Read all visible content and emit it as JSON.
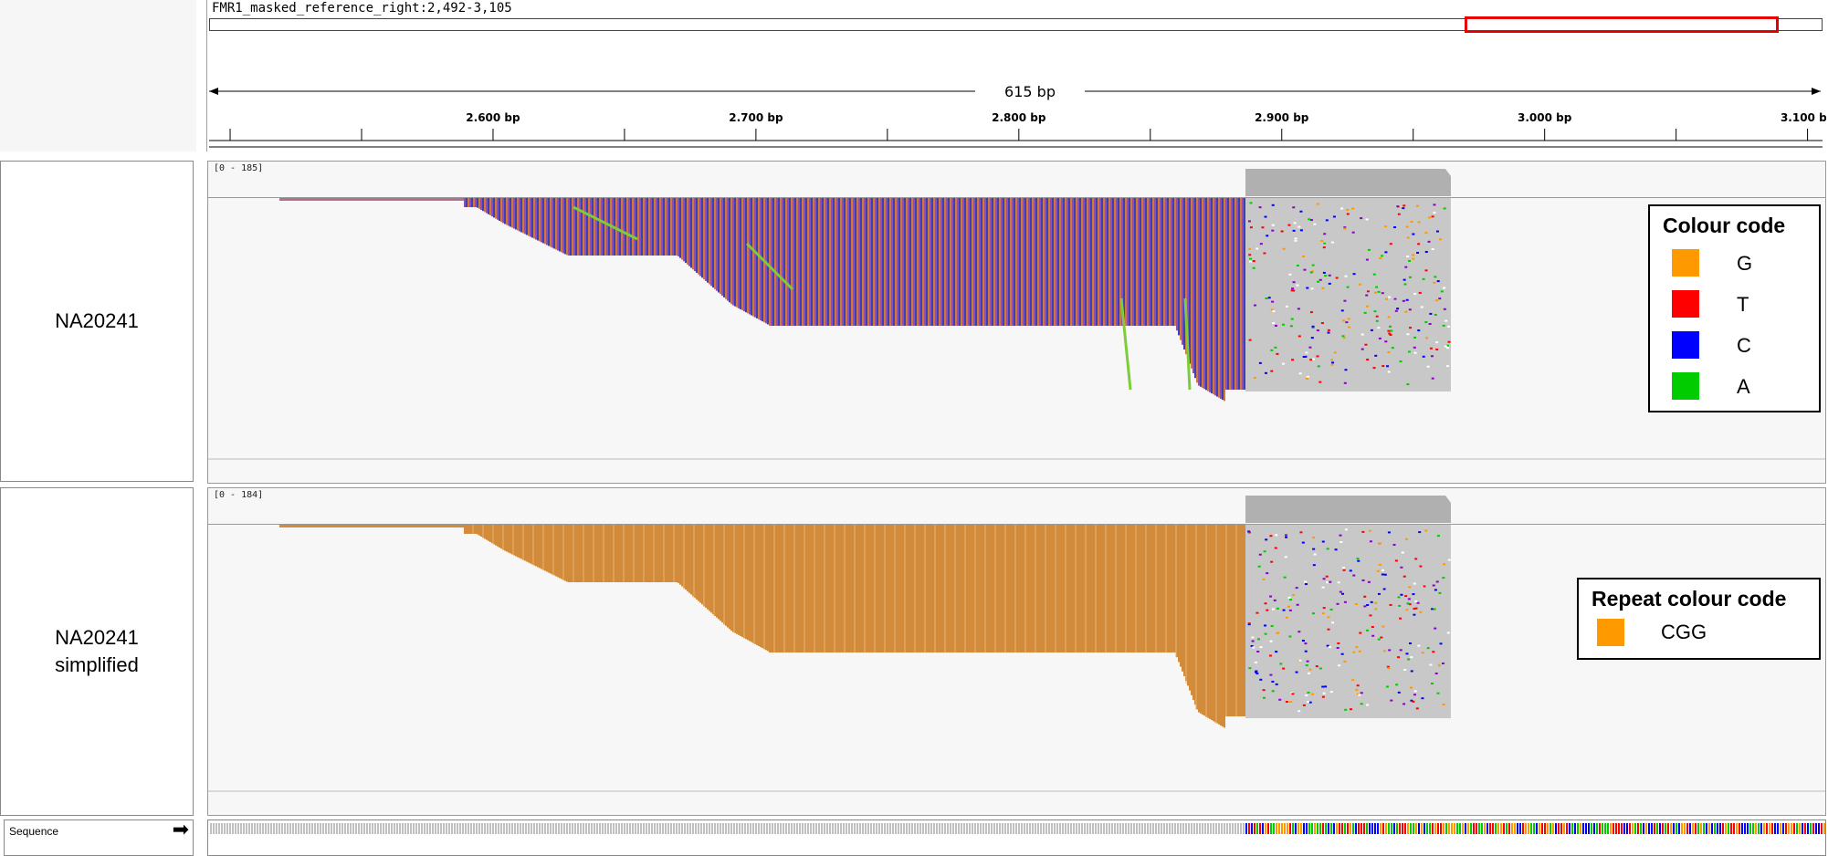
{
  "locus": {
    "title": "FMR1_masked_reference_right:2,492-3,105",
    "span_label": "615 bp"
  },
  "ruler": {
    "ticks": [
      {
        "label": "2.600 bp",
        "pos": 2600
      },
      {
        "label": "2.700 bp",
        "pos": 2700
      },
      {
        "label": "2.800 bp",
        "pos": 2800
      },
      {
        "label": "2.900 bp",
        "pos": 2900
      },
      {
        "label": "3.000 bp",
        "pos": 3000
      },
      {
        "label": "3.100 bp",
        "pos": 3100
      }
    ],
    "start": 2492,
    "end": 3105
  },
  "tracks": [
    {
      "name": "NA20241",
      "coverage_range": "[0 - 185]"
    },
    {
      "name_line1": "NA20241",
      "name_line2": "simplified",
      "coverage_range": "[0 - 184]"
    }
  ],
  "legend_colour": {
    "title": "Colour code",
    "items": [
      {
        "letter": "G",
        "color": "#ff9900"
      },
      {
        "letter": "T",
        "color": "#ff0000"
      },
      {
        "letter": "C",
        "color": "#0000ff"
      },
      {
        "letter": "A",
        "color": "#00cc00"
      }
    ]
  },
  "legend_repeat": {
    "title": "Repeat colour code",
    "items": [
      {
        "label": "CGG",
        "color": "#ff9900"
      }
    ]
  },
  "sequence": {
    "label": "Sequence",
    "arrow": "➡"
  },
  "colors": {
    "repeat": "#d28b3a",
    "reads_gray": "#c8c8c8",
    "coverage": "#b0b0b0",
    "highlight": "#e60000"
  }
}
